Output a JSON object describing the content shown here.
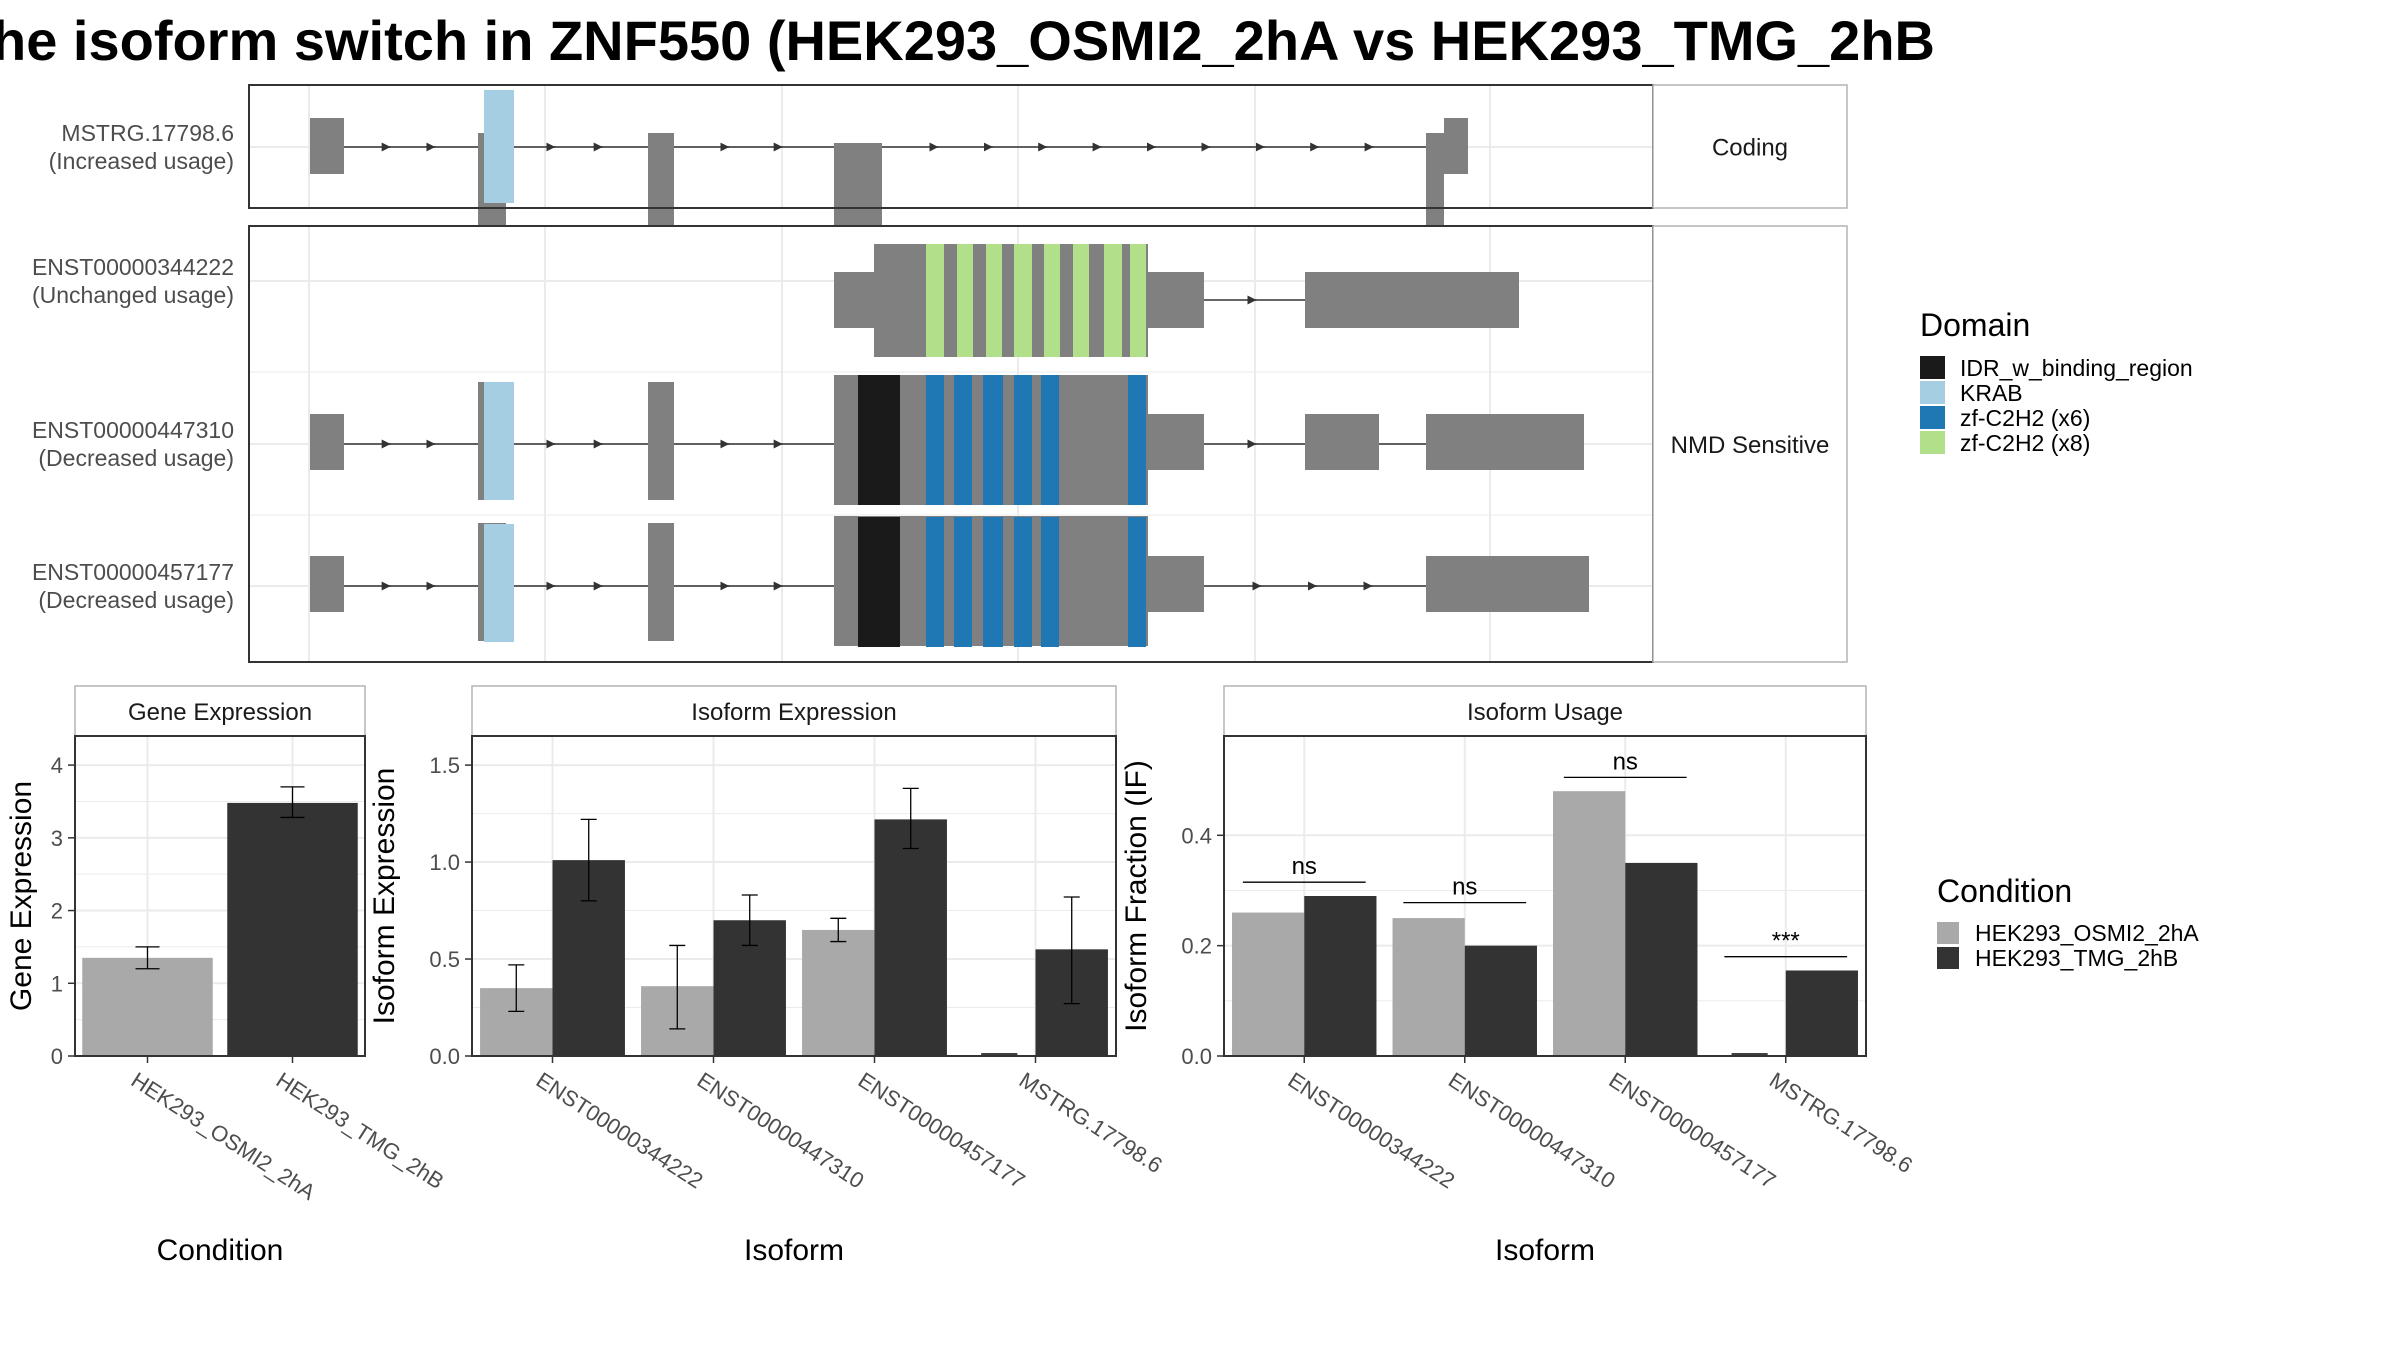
{
  "title": "he isoform switch in ZNF550 (HEK293_OSMI2_2hA vs HEK293_TMG_2hB",
  "colors": {
    "exon": "#808080",
    "intron": "#333333",
    "bar_a": "#a9a9a9",
    "bar_b": "#333333",
    "strip_bg": "#ffffff",
    "grid": "#ebebeb",
    "domains": {
      "IDR_w_binding_region": "#1a1a1a",
      "KRAB": "#a6cee3",
      "zf-C2H2 (x6)": "#1f78b4",
      "zf-C2H2 (x8)": "#b2df8a"
    }
  },
  "chart_data": [
    {
      "type": "gene-structure",
      "facets": [
        {
          "label": "Coding",
          "transcripts": [
            {
              "id": "MSTRG.17798.6",
              "usage": "(Increased usage)"
            }
          ]
        },
        {
          "label": "NMD Sensitive",
          "transcripts": [
            {
              "id": "ENST00000344222",
              "usage": "(Unchanged usage)"
            },
            {
              "id": "ENST00000447310",
              "usage": "(Decreased usage)"
            },
            {
              "id": "ENST00000457177",
              "usage": "(Decreased usage)"
            }
          ]
        }
      ],
      "legend": {
        "title": "Domain",
        "entries": [
          "IDR_w_binding_region",
          "KRAB",
          "zf-C2H2 (x6)",
          "zf-C2H2 (x8)"
        ]
      }
    },
    {
      "type": "bar",
      "title": "Gene Expression",
      "xlabel": "Condition",
      "ylabel": "Gene Expression",
      "categories": [
        "HEK293_OSMI2_2hA",
        "HEK293_TMG_2hB"
      ],
      "values": [
        1.35,
        3.48
      ],
      "errors": [
        [
          1.2,
          1.5
        ],
        [
          3.28,
          3.7
        ]
      ],
      "ylim": [
        0,
        4.4
      ],
      "yticks": [
        0,
        1,
        2,
        3,
        4
      ]
    },
    {
      "type": "bar",
      "title": "Isoform Expression",
      "xlabel": "Isoform",
      "ylabel": "Isoform Expression",
      "categories": [
        "ENST00000344222",
        "ENST00000447310",
        "ENST00000457177",
        "MSTRG.17798.6"
      ],
      "series": [
        {
          "name": "HEK293_OSMI2_2hA",
          "values": [
            0.35,
            0.36,
            0.65,
            0.0
          ],
          "errors": [
            [
              0.23,
              0.47
            ],
            [
              0.14,
              0.57
            ],
            [
              0.59,
              0.71
            ],
            [
              0.0,
              0.0
            ]
          ]
        },
        {
          "name": "HEK293_TMG_2hB",
          "values": [
            1.01,
            0.7,
            1.22,
            0.55
          ],
          "errors": [
            [
              0.8,
              1.22
            ],
            [
              0.57,
              0.83
            ],
            [
              1.07,
              1.38
            ],
            [
              0.27,
              0.82
            ]
          ]
        }
      ],
      "ylim": [
        0,
        1.65
      ],
      "yticks": [
        0.0,
        0.5,
        1.0,
        1.5
      ]
    },
    {
      "type": "bar",
      "title": "Isoform Usage",
      "xlabel": "Isoform",
      "ylabel": "Isoform Fraction (IF)",
      "categories": [
        "ENST00000344222",
        "ENST00000447310",
        "ENST00000457177",
        "MSTRG.17798.6"
      ],
      "series": [
        {
          "name": "HEK293_OSMI2_2hA",
          "values": [
            0.26,
            0.25,
            0.48,
            0.0
          ]
        },
        {
          "name": "HEK293_TMG_2hB",
          "values": [
            0.29,
            0.2,
            0.35,
            0.155
          ]
        }
      ],
      "significance": [
        "ns",
        "ns",
        "ns",
        "***"
      ],
      "significance_levels": [
        0.315,
        0.278,
        0.505,
        0.18
      ],
      "ylim": [
        0,
        0.58
      ],
      "yticks": [
        0.0,
        0.2,
        0.4
      ]
    }
  ],
  "condition_legend": {
    "title": "Condition",
    "entries": [
      "HEK293_OSMI2_2hA",
      "HEK293_TMG_2hB"
    ]
  }
}
